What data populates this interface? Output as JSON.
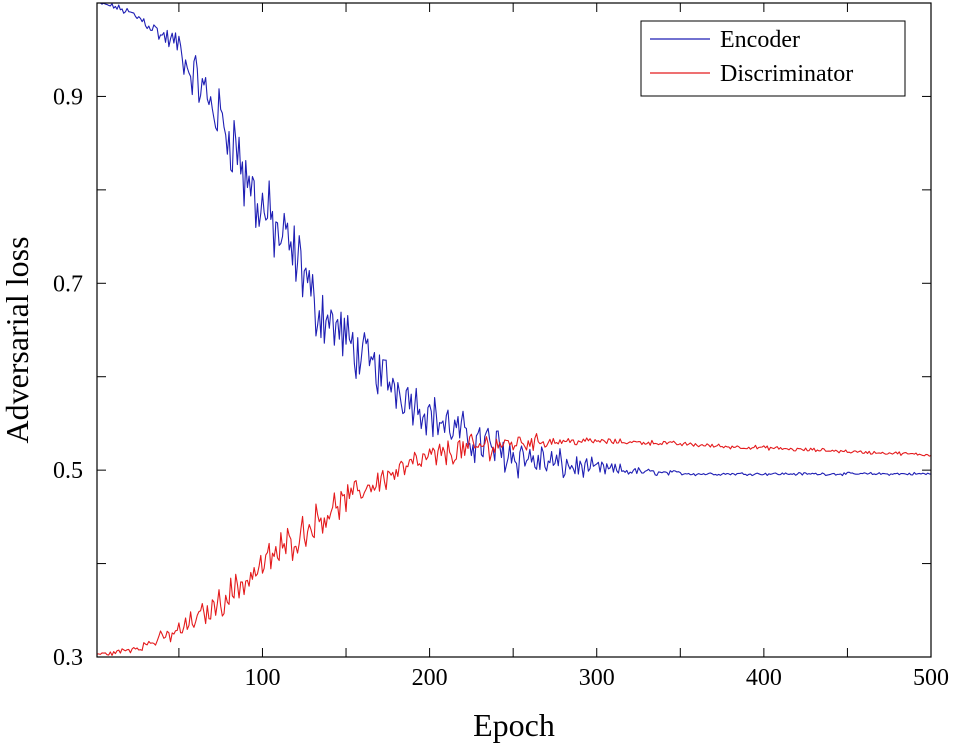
{
  "chart_data": {
    "type": "line",
    "title": "",
    "xlabel": "Epoch",
    "ylabel": "Adversarial  loss",
    "xlim": [
      1,
      500
    ],
    "ylim": [
      0.3,
      1.0
    ],
    "xticks": [
      100,
      200,
      300,
      400,
      500
    ],
    "xtick_labels": [
      "100",
      "200",
      "300",
      "400",
      "500"
    ],
    "x_minor_ticks": [
      50,
      150,
      250,
      350,
      450
    ],
    "yticks": [
      0.3,
      0.5,
      0.7,
      0.9
    ],
    "ytick_labels": [
      "0.3",
      "0.5",
      "0.7",
      "0.9"
    ],
    "y_minor_ticks": [
      0.4,
      0.6,
      0.8
    ],
    "grid": false,
    "legend": {
      "placement": "top-right"
    },
    "series": [
      {
        "name": "Encoder",
        "color": "#1f1fb4",
        "x": [
          1,
          10,
          20,
          30,
          40,
          50,
          55,
          60,
          65,
          70,
          75,
          80,
          85,
          88,
          90,
          92,
          95,
          100,
          105,
          110,
          115,
          120,
          125,
          128,
          130,
          135,
          140,
          150,
          160,
          170,
          180,
          190,
          200,
          210,
          220,
          230,
          240,
          250,
          260,
          270,
          280,
          290,
          300,
          310,
          320,
          330,
          340,
          350,
          360,
          380,
          400,
          420,
          440,
          460,
          480,
          500
        ],
        "values": [
          1.0,
          0.997,
          0.99,
          0.98,
          0.965,
          0.955,
          0.93,
          0.92,
          0.905,
          0.89,
          0.875,
          0.86,
          0.845,
          0.82,
          0.805,
          0.815,
          0.79,
          0.78,
          0.765,
          0.75,
          0.74,
          0.725,
          0.715,
          0.69,
          0.68,
          0.67,
          0.66,
          0.64,
          0.62,
          0.605,
          0.59,
          0.575,
          0.56,
          0.548,
          0.538,
          0.53,
          0.523,
          0.517,
          0.512,
          0.508,
          0.505,
          0.503,
          0.502,
          0.5,
          0.499,
          0.498,
          0.497,
          0.497,
          0.496,
          0.496,
          0.496,
          0.496,
          0.496,
          0.496,
          0.496,
          0.496
        ],
        "noise": [
          0.001,
          0.002,
          0.004,
          0.006,
          0.008,
          0.012,
          0.016,
          0.02,
          0.022,
          0.024,
          0.026,
          0.028,
          0.03,
          0.034,
          0.036,
          0.034,
          0.032,
          0.03,
          0.03,
          0.03,
          0.03,
          0.03,
          0.03,
          0.03,
          0.028,
          0.026,
          0.025,
          0.024,
          0.022,
          0.021,
          0.02,
          0.019,
          0.018,
          0.018,
          0.018,
          0.02,
          0.02,
          0.019,
          0.017,
          0.015,
          0.012,
          0.009,
          0.007,
          0.006,
          0.004,
          0.003,
          0.002,
          0.002,
          0.0015,
          0.0012,
          0.0012,
          0.0012,
          0.0012,
          0.0012,
          0.0012,
          0.0012
        ]
      },
      {
        "name": "Discriminator",
        "color": "#e41a1c",
        "x": [
          1,
          10,
          20,
          30,
          40,
          50,
          60,
          70,
          80,
          90,
          100,
          110,
          120,
          130,
          140,
          150,
          160,
          170,
          180,
          190,
          200,
          210,
          220,
          230,
          240,
          250,
          260,
          270,
          280,
          290,
          300,
          320,
          340,
          360,
          380,
          400,
          420,
          440,
          460,
          480,
          500
        ],
        "values": [
          0.303,
          0.304,
          0.308,
          0.313,
          0.32,
          0.328,
          0.34,
          0.352,
          0.367,
          0.382,
          0.398,
          0.413,
          0.428,
          0.443,
          0.456,
          0.468,
          0.479,
          0.489,
          0.498,
          0.506,
          0.513,
          0.518,
          0.522,
          0.525,
          0.527,
          0.529,
          0.53,
          0.531,
          0.531,
          0.531,
          0.531,
          0.53,
          0.529,
          0.527,
          0.525,
          0.524,
          0.522,
          0.521,
          0.519,
          0.518,
          0.516
        ],
        "noise": [
          0.001,
          0.002,
          0.003,
          0.004,
          0.006,
          0.008,
          0.01,
          0.011,
          0.013,
          0.015,
          0.015,
          0.015,
          0.015,
          0.014,
          0.013,
          0.012,
          0.011,
          0.011,
          0.011,
          0.011,
          0.011,
          0.011,
          0.011,
          0.011,
          0.01,
          0.009,
          0.007,
          0.005,
          0.004,
          0.003,
          0.0025,
          0.002,
          0.002,
          0.0018,
          0.0018,
          0.0016,
          0.0016,
          0.0016,
          0.0014,
          0.0014,
          0.0012
        ]
      }
    ]
  }
}
